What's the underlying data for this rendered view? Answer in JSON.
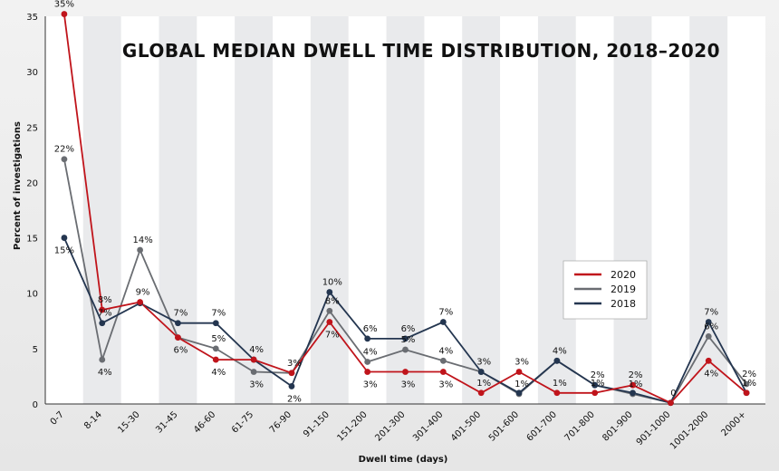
{
  "chart_data": {
    "type": "line",
    "title": "GLOBAL MEDIAN DWELL TIME DISTRIBUTION, 2018–2020",
    "xlabel": "Dwell time (days)",
    "ylabel": "Percent of investigations",
    "ylim": [
      0,
      35
    ],
    "yticks": [
      0,
      5,
      10,
      15,
      20,
      25,
      30,
      35
    ],
    "grid": false,
    "legend_position": "right",
    "categories": [
      "0-7",
      "8-14",
      "15-30",
      "31-45",
      "46-60",
      "61-75",
      "76-90",
      "91-150",
      "151-200",
      "201-300",
      "301-400",
      "401-500",
      "501-600",
      "601-700",
      "701-800",
      "801-900",
      "901-1000",
      "1001-2000",
      "2000+"
    ],
    "series": [
      {
        "name": "2020",
        "color": "#c0141b",
        "values": [
          35.2,
          8.5,
          9.2,
          6,
          4,
          4,
          2.8,
          7.4,
          2.9,
          2.9,
          2.9,
          1,
          2.9,
          1,
          1,
          1.7,
          0.1,
          3.9,
          1
        ],
        "labels": [
          "35%",
          "8%",
          "9%",
          "6%",
          "4%",
          "4%",
          "3%",
          "7%",
          "3%",
          "3%",
          "3%",
          "1%",
          "3%",
          "1%",
          "1%",
          "2%",
          "",
          "4%",
          "1%"
        ]
      },
      {
        "name": "2019",
        "color": "#6a6d72",
        "values": [
          22.1,
          4,
          13.9,
          6,
          5,
          2.9,
          2.8,
          8.4,
          3.8,
          4.9,
          3.9,
          2.9,
          0.9,
          3.9,
          1.7,
          0.9,
          0.1,
          6.1,
          1.8
        ],
        "labels": [
          "22%",
          "4%",
          "14%",
          "",
          "5%",
          "3%",
          "",
          "8%",
          "4%",
          "5%",
          "4%",
          "3%",
          "1%",
          "4%",
          "",
          "1%",
          "",
          "6%",
          "2%"
        ]
      },
      {
        "name": "2018",
        "color": "#243650",
        "values": [
          15,
          7.3,
          9.1,
          7.3,
          7.3,
          4,
          1.6,
          10.1,
          5.9,
          5.9,
          7.4,
          2.9,
          1,
          3.9,
          1.7,
          1,
          0.1,
          7.4,
          1
        ],
        "labels": [
          "15%",
          "7%",
          "",
          "7%",
          "7%",
          "",
          "2%",
          "10%",
          "6%",
          "6%",
          "7%",
          "",
          "",
          "",
          "2%",
          "",
          "0",
          "7%",
          ""
        ]
      }
    ]
  }
}
